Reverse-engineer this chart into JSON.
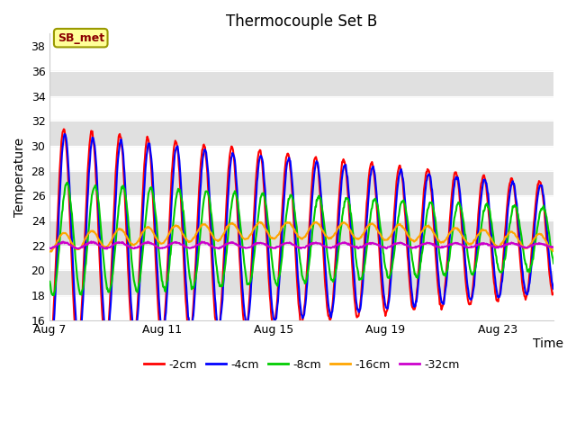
{
  "title": "Thermocouple Set B",
  "xlabel": "Time",
  "ylabel": "Temperature",
  "ylim": [
    16,
    39
  ],
  "yticks": [
    16,
    18,
    20,
    22,
    24,
    26,
    28,
    30,
    32,
    34,
    36,
    38
  ],
  "xtick_labels": [
    "Aug 7",
    "Aug 11",
    "Aug 15",
    "Aug 19",
    "Aug 23"
  ],
  "xtick_days": [
    0,
    4,
    8,
    12,
    16
  ],
  "total_days": 18,
  "n_points": 864,
  "lines": [
    {
      "label": "-2cm",
      "color": "#ff0000",
      "amp_start": 9.0,
      "amp_end": 4.5,
      "base": 22.5,
      "phase": 0.0,
      "base_drift": 0.0
    },
    {
      "label": "-4cm",
      "color": "#0000ff",
      "amp_start": 8.5,
      "amp_end": 4.2,
      "base": 22.5,
      "phase": 0.25,
      "base_drift": 0.0
    },
    {
      "label": "-8cm",
      "color": "#00cc00",
      "amp_start": 4.5,
      "amp_end": 2.5,
      "base": 22.5,
      "phase": 0.7,
      "base_drift": 0.0
    },
    {
      "label": "-16cm",
      "color": "#ffa500",
      "amp_start": 0.7,
      "amp_end": 0.6,
      "base": 22.2,
      "phase": 0.0,
      "base_drift": 1.0
    },
    {
      "label": "-32cm",
      "color": "#cc00cc",
      "amp_start": 0.25,
      "amp_end": 0.15,
      "base": 22.0,
      "phase": 0.0,
      "base_drift": 0.0
    }
  ],
  "legend_ncol": 5,
  "bg_color": "#ffffff",
  "band_color": "#e0e0e0",
  "annotation_text": "SB_met",
  "title_fontsize": 12,
  "axis_fontsize": 10,
  "tick_fontsize": 9,
  "legend_fontsize": 9,
  "line_width": 1.5
}
